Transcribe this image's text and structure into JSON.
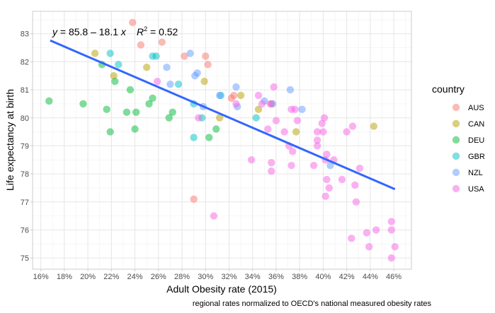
{
  "chart_data": {
    "type": "scatter",
    "title": "",
    "xlabel": "Adult Obesity rate (2015)",
    "ylabel": "Life expectancy at birth",
    "caption": "regional rates normalized to OECD's national measured obesity rates",
    "xlim": [
      0.153,
      0.475
    ],
    "ylim": [
      74.6,
      83.8
    ],
    "x_ticks": [
      0.16,
      0.18,
      0.2,
      0.22,
      0.24,
      0.26,
      0.28,
      0.3,
      0.32,
      0.34,
      0.36,
      0.38,
      0.4,
      0.42,
      0.44,
      0.46
    ],
    "x_tick_labels": [
      "16%",
      "18%",
      "20%",
      "22%",
      "24%",
      "26%",
      "28%",
      "30%",
      "32%",
      "34%",
      "36%",
      "38%",
      "40%",
      "42%",
      "44%",
      "46%"
    ],
    "y_ticks": [
      75,
      76,
      77,
      78,
      79,
      80,
      81,
      82,
      83
    ],
    "y_tick_labels": [
      "75",
      "76",
      "77",
      "78",
      "79",
      "80",
      "81",
      "82",
      "83"
    ],
    "grid": true,
    "legend": {
      "title": "country",
      "position": "right",
      "entries": [
        {
          "name": "AUS",
          "color": "#F8766D"
        },
        {
          "name": "CAN",
          "color": "#B79F00"
        },
        {
          "name": "DEU",
          "color": "#00BA38"
        },
        {
          "name": "GBR",
          "color": "#00BFC4"
        },
        {
          "name": "NZL",
          "color": "#619CFF"
        },
        {
          "name": "USA",
          "color": "#F564E3"
        }
      ]
    },
    "regression": {
      "intercept": 85.8,
      "slope": -18.1,
      "r2": 0.52,
      "x_range": [
        0.168,
        0.461
      ],
      "color": "#3366FF",
      "label_eq": "y = 85.8 – 18.1 x",
      "label_r2": "R² = 0.52"
    },
    "series": [
      {
        "name": "AUS",
        "points": [
          [
            0.238,
            83.4
          ],
          [
            0.245,
            82.6
          ],
          [
            0.263,
            82.7
          ],
          [
            0.282,
            82.2
          ],
          [
            0.3,
            82.2
          ],
          [
            0.302,
            81.9
          ],
          [
            0.29,
            77.1
          ],
          [
            0.322,
            80.7
          ],
          [
            0.324,
            80.8
          ],
          [
            0.356,
            80.5
          ]
        ]
      },
      {
        "name": "CAN",
        "points": [
          [
            0.206,
            82.3
          ],
          [
            0.222,
            81.5
          ],
          [
            0.25,
            81.8
          ],
          [
            0.299,
            81.3
          ],
          [
            0.312,
            80.0
          ],
          [
            0.33,
            80.8
          ],
          [
            0.345,
            80.3
          ],
          [
            0.377,
            79.5
          ],
          [
            0.443,
            79.7
          ]
        ]
      },
      {
        "name": "DEU",
        "points": [
          [
            0.167,
            80.6
          ],
          [
            0.196,
            80.5
          ],
          [
            0.212,
            81.9
          ],
          [
            0.216,
            80.3
          ],
          [
            0.219,
            79.5
          ],
          [
            0.223,
            81.3
          ],
          [
            0.233,
            80.2
          ],
          [
            0.236,
            81.0
          ],
          [
            0.241,
            80.2
          ],
          [
            0.24,
            79.6
          ],
          [
            0.252,
            80.5
          ],
          [
            0.255,
            80.7
          ],
          [
            0.269,
            80.0
          ],
          [
            0.272,
            80.2
          ],
          [
            0.303,
            79.3
          ],
          [
            0.309,
            79.6
          ]
        ]
      },
      {
        "name": "GBR",
        "points": [
          [
            0.219,
            82.3
          ],
          [
            0.226,
            81.9
          ],
          [
            0.255,
            82.2
          ],
          [
            0.258,
            82.2
          ],
          [
            0.277,
            81.2
          ],
          [
            0.29,
            80.5
          ],
          [
            0.297,
            80.0
          ],
          [
            0.29,
            79.3
          ],
          [
            0.313,
            80.8
          ],
          [
            0.343,
            80.0
          ]
        ]
      },
      {
        "name": "NZL",
        "points": [
          [
            0.267,
            81.8
          ],
          [
            0.27,
            81.2
          ],
          [
            0.287,
            82.3
          ],
          [
            0.293,
            81.6
          ],
          [
            0.291,
            81.5
          ],
          [
            0.298,
            80.4
          ],
          [
            0.312,
            80.8
          ],
          [
            0.326,
            81.1
          ],
          [
            0.327,
            80.4
          ],
          [
            0.35,
            80.6
          ],
          [
            0.357,
            80.5
          ],
          [
            0.372,
            81.0
          ],
          [
            0.382,
            80.3
          ],
          [
            0.406,
            78.3
          ]
        ]
      },
      {
        "name": "USA",
        "points": [
          [
            0.259,
            81.3
          ],
          [
            0.294,
            80.0
          ],
          [
            0.307,
            76.5
          ],
          [
            0.326,
            80.5
          ],
          [
            0.339,
            78.5
          ],
          [
            0.345,
            80.8
          ],
          [
            0.348,
            80.5
          ],
          [
            0.353,
            79.6
          ],
          [
            0.355,
            80.5
          ],
          [
            0.356,
            78.4
          ],
          [
            0.356,
            78.1
          ],
          [
            0.358,
            81.1
          ],
          [
            0.36,
            79.9
          ],
          [
            0.367,
            79.5
          ],
          [
            0.371,
            79.0
          ],
          [
            0.373,
            80.3
          ],
          [
            0.373,
            78.3
          ],
          [
            0.374,
            78.8
          ],
          [
            0.376,
            80.3
          ],
          [
            0.378,
            79.9
          ],
          [
            0.392,
            78.3
          ],
          [
            0.395,
            79.5
          ],
          [
            0.395,
            79.2
          ],
          [
            0.395,
            79.0
          ],
          [
            0.399,
            79.8
          ],
          [
            0.4,
            79.5
          ],
          [
            0.401,
            80.0
          ],
          [
            0.402,
            78.5
          ],
          [
            0.403,
            78.7
          ],
          [
            0.402,
            77.2
          ],
          [
            0.403,
            77.8
          ],
          [
            0.405,
            77.5
          ],
          [
            0.409,
            78.5
          ],
          [
            0.416,
            77.8
          ],
          [
            0.42,
            79.5
          ],
          [
            0.425,
            79.7
          ],
          [
            0.424,
            75.7
          ],
          [
            0.427,
            77.6
          ],
          [
            0.428,
            77.0
          ],
          [
            0.431,
            78.2
          ],
          [
            0.437,
            75.9
          ],
          [
            0.439,
            75.4
          ],
          [
            0.445,
            76.0
          ],
          [
            0.458,
            76.3
          ],
          [
            0.458,
            76.0
          ],
          [
            0.458,
            75.0
          ],
          [
            0.461,
            75.4
          ]
        ]
      }
    ]
  }
}
